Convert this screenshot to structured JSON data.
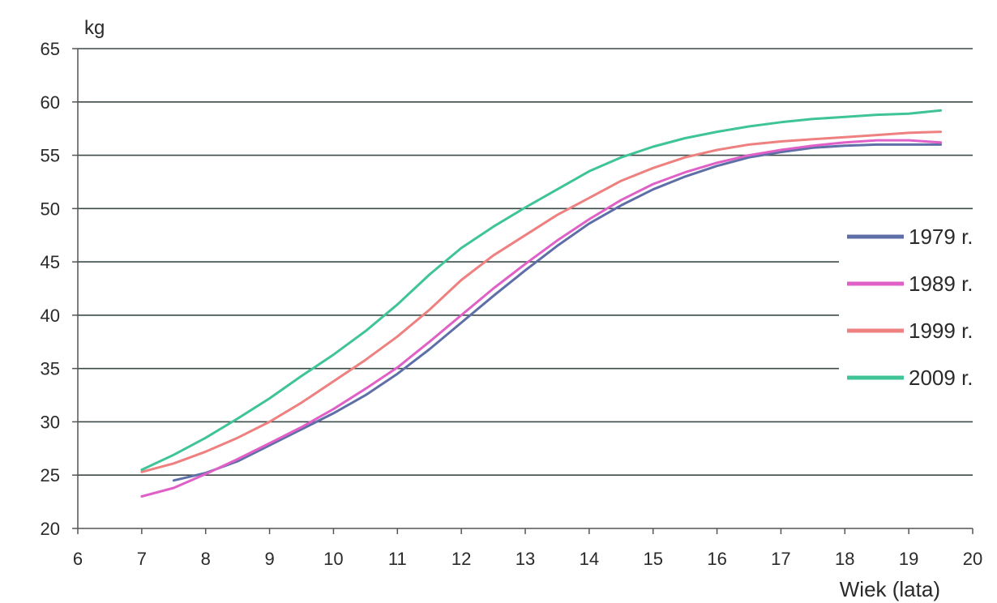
{
  "chart_data": {
    "type": "line",
    "ylabel": "kg",
    "xlabel": "Wiek (lata)",
    "xlim": [
      6,
      20
    ],
    "ylim": [
      20,
      65
    ],
    "x_ticks": [
      6,
      7,
      8,
      9,
      10,
      11,
      12,
      13,
      14,
      15,
      16,
      17,
      18,
      19,
      20
    ],
    "y_ticks": [
      20,
      25,
      30,
      35,
      40,
      45,
      50,
      55,
      60,
      65
    ],
    "grid": true,
    "legend_position": "right",
    "series": [
      {
        "name": "1979 r.",
        "color": "#5e6fa8",
        "x": [
          7.5,
          8,
          8.5,
          9,
          9.5,
          10,
          10.5,
          11,
          11.5,
          12,
          12.5,
          13,
          13.5,
          14,
          14.5,
          15,
          15.5,
          16,
          16.5,
          17,
          17.5,
          18,
          18.5,
          19,
          19.5
        ],
        "y": [
          24.5,
          25.2,
          26.3,
          27.8,
          29.3,
          30.8,
          32.5,
          34.5,
          36.8,
          39.3,
          41.8,
          44.2,
          46.5,
          48.6,
          50.3,
          51.8,
          53.0,
          54.0,
          54.8,
          55.3,
          55.7,
          55.9,
          56.0,
          56.0,
          56.0
        ]
      },
      {
        "name": "1989 r.",
        "color": "#e060c8",
        "x": [
          7,
          7.5,
          8,
          8.5,
          9,
          9.5,
          10,
          10.5,
          11,
          11.5,
          12,
          12.5,
          13,
          13.5,
          14,
          14.5,
          15,
          15.5,
          16,
          16.5,
          17,
          17.5,
          18,
          18.5,
          19,
          19.5
        ],
        "y": [
          23.0,
          23.8,
          25.1,
          26.5,
          28.0,
          29.5,
          31.2,
          33.1,
          35.1,
          37.5,
          40.0,
          42.5,
          44.8,
          47.0,
          49.0,
          50.8,
          52.3,
          53.4,
          54.3,
          55.0,
          55.5,
          55.9,
          56.2,
          56.4,
          56.4,
          56.2
        ]
      },
      {
        "name": "1999 r.",
        "color": "#ee8080",
        "x": [
          7,
          7.5,
          8,
          8.5,
          9,
          9.5,
          10,
          10.5,
          11,
          11.5,
          12,
          12.5,
          13,
          13.5,
          14,
          14.5,
          15,
          15.5,
          16,
          16.5,
          17,
          17.5,
          18,
          18.5,
          19,
          19.5
        ],
        "y": [
          25.3,
          26.1,
          27.2,
          28.5,
          30.0,
          31.8,
          33.8,
          35.8,
          38.0,
          40.5,
          43.3,
          45.6,
          47.5,
          49.4,
          51.0,
          52.6,
          53.8,
          54.8,
          55.5,
          56.0,
          56.3,
          56.5,
          56.7,
          56.9,
          57.1,
          57.2
        ]
      },
      {
        "name": "2009 r.",
        "color": "#3ec497",
        "x": [
          7,
          7.5,
          8,
          8.5,
          9,
          9.5,
          10,
          10.5,
          11,
          11.5,
          12,
          12.5,
          13,
          13.5,
          14,
          14.5,
          15,
          15.5,
          16,
          16.5,
          17,
          17.5,
          18,
          18.5,
          19,
          19.5
        ],
        "y": [
          25.5,
          26.9,
          28.5,
          30.3,
          32.2,
          34.3,
          36.3,
          38.5,
          41.0,
          43.8,
          46.3,
          48.3,
          50.1,
          51.8,
          53.5,
          54.8,
          55.8,
          56.6,
          57.2,
          57.7,
          58.1,
          58.4,
          58.6,
          58.8,
          58.9,
          59.2
        ]
      }
    ]
  }
}
